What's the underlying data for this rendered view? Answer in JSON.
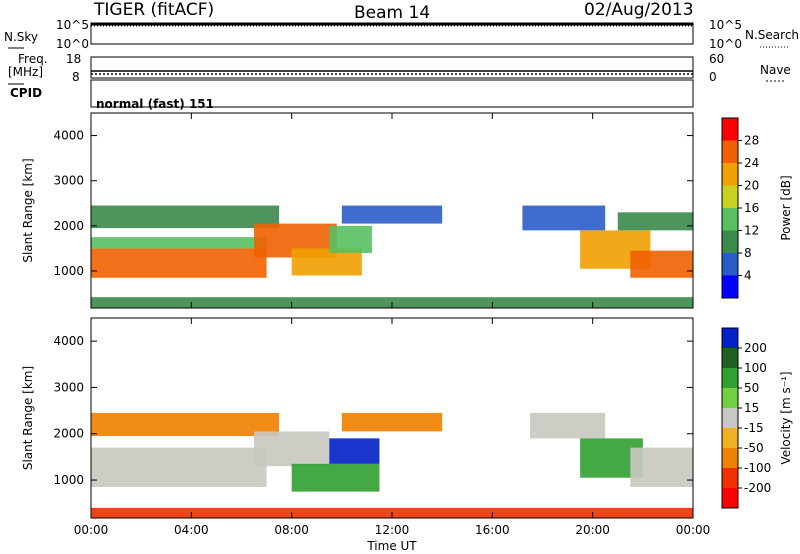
{
  "header": {
    "radar": "TIGER (fitACF)",
    "beam": "Beam 14",
    "date": "02/Aug/2013"
  },
  "strips": {
    "nsky_label": "N.Sky",
    "nsky_ticks": [
      "10^5",
      "10^0"
    ],
    "nsearch_label": "N.Search",
    "nsearch_ticks": [
      "10^5",
      "10^0"
    ],
    "freq_label": "Freq.",
    "freq_unit": "[MHz]",
    "freq_ticks": [
      "18",
      "8"
    ],
    "nave_label": "Nave",
    "nave_ticks": [
      "60",
      "0"
    ],
    "cpid_label": "CPID",
    "cpid_value": "normal (fast) 151"
  },
  "colors": {
    "power_scale": [
      "#0000ff",
      "#2a5cc8",
      "#3a8a4a",
      "#58c060",
      "#c8d020",
      "#f0a000",
      "#f06000",
      "#ff0000"
    ],
    "velocity_scale": [
      "#0020c8",
      "#206020",
      "#30a030",
      "#70d040",
      "#c8c8c0",
      "#f0b020",
      "#f08000",
      "#f03000",
      "#ff0000"
    ],
    "ground_scatter": "#c8c8c0"
  },
  "chart_data": [
    {
      "type": "heatmap",
      "name": "power",
      "title": "",
      "xlabel": "Time UT",
      "ylabel": "Slant Range [km]",
      "x_ticks": [
        "00:00",
        "04:00",
        "08:00",
        "12:00",
        "16:00",
        "20:00",
        "00:00"
      ],
      "y_ticks": [
        "1000",
        "2000",
        "3000",
        "4000"
      ],
      "xlim_hours": [
        0,
        24
      ],
      "ylim_km": [
        180,
        4500
      ],
      "colorbar": {
        "label": "Power [dB]",
        "ticks": [
          "4",
          "8",
          "12",
          "16",
          "20",
          "24",
          "28"
        ],
        "range": [
          0,
          30
        ]
      },
      "bands": [
        {
          "t0": 0.0,
          "t1": 7.0,
          "r0": 850,
          "r1": 1500,
          "value": 26
        },
        {
          "t0": 0.0,
          "t1": 7.0,
          "r0": 1500,
          "r1": 1750,
          "value": 14
        },
        {
          "t0": 0.0,
          "t1": 7.5,
          "r0": 1950,
          "r1": 2450,
          "value": 10
        },
        {
          "t0": 6.5,
          "t1": 9.8,
          "r0": 1300,
          "r1": 2050,
          "value": 24
        },
        {
          "t0": 8.0,
          "t1": 10.8,
          "r0": 900,
          "r1": 1500,
          "value": 22
        },
        {
          "t0": 9.5,
          "t1": 11.2,
          "r0": 1400,
          "r1": 2000,
          "value": 14
        },
        {
          "t0": 10.0,
          "t1": 14.0,
          "r0": 2050,
          "r1": 2450,
          "value": 7
        },
        {
          "t0": 17.2,
          "t1": 20.5,
          "r0": 1900,
          "r1": 2450,
          "value": 5
        },
        {
          "t0": 19.5,
          "t1": 22.3,
          "r0": 1050,
          "r1": 1900,
          "value": 22
        },
        {
          "t0": 21.5,
          "t1": 24.0,
          "r0": 850,
          "r1": 1450,
          "value": 24
        },
        {
          "t0": 21.0,
          "t1": 24.0,
          "r0": 1900,
          "r1": 2300,
          "value": 10
        },
        {
          "t0": 0.0,
          "t1": 24.0,
          "r0": 180,
          "r1": 420,
          "value": 9
        }
      ]
    },
    {
      "type": "heatmap",
      "name": "velocity",
      "title": "",
      "xlabel": "Time UT",
      "ylabel": "Slant Range [km]",
      "x_ticks": [
        "00:00",
        "04:00",
        "08:00",
        "12:00",
        "16:00",
        "20:00",
        "00:00"
      ],
      "y_ticks": [
        "1000",
        "2000",
        "3000",
        "4000"
      ],
      "xlim_hours": [
        0,
        24
      ],
      "ylim_km": [
        180,
        4500
      ],
      "colorbar": {
        "label": "Velocity [m s⁻¹]",
        "ticks": [
          "200",
          "100",
          "50",
          "15",
          "-15",
          "-50",
          "-100",
          "-200"
        ],
        "range": [
          -250,
          250
        ]
      },
      "bands": [
        {
          "t0": 0.0,
          "t1": 7.0,
          "r0": 850,
          "r1": 1700,
          "value": 0
        },
        {
          "t0": 0.0,
          "t1": 7.5,
          "r0": 1950,
          "r1": 2450,
          "value": -40
        },
        {
          "t0": 6.5,
          "t1": 9.5,
          "r0": 1300,
          "r1": 2050,
          "value": 0
        },
        {
          "t0": 8.0,
          "t1": 11.5,
          "r0": 750,
          "r1": 1350,
          "value": 45
        },
        {
          "t0": 9.5,
          "t1": 11.5,
          "r0": 1350,
          "r1": 1900,
          "value": 200
        },
        {
          "t0": 10.0,
          "t1": 14.0,
          "r0": 2050,
          "r1": 2450,
          "value": -60
        },
        {
          "t0": 17.5,
          "t1": 20.5,
          "r0": 1900,
          "r1": 2450,
          "value": 0
        },
        {
          "t0": 19.5,
          "t1": 22.0,
          "r0": 1050,
          "r1": 1900,
          "value": 40
        },
        {
          "t0": 21.5,
          "t1": 24.0,
          "r0": 850,
          "r1": 1700,
          "value": 0
        },
        {
          "t0": 0.0,
          "t1": 24.0,
          "r0": 180,
          "r1": 400,
          "value": -90
        }
      ]
    }
  ]
}
